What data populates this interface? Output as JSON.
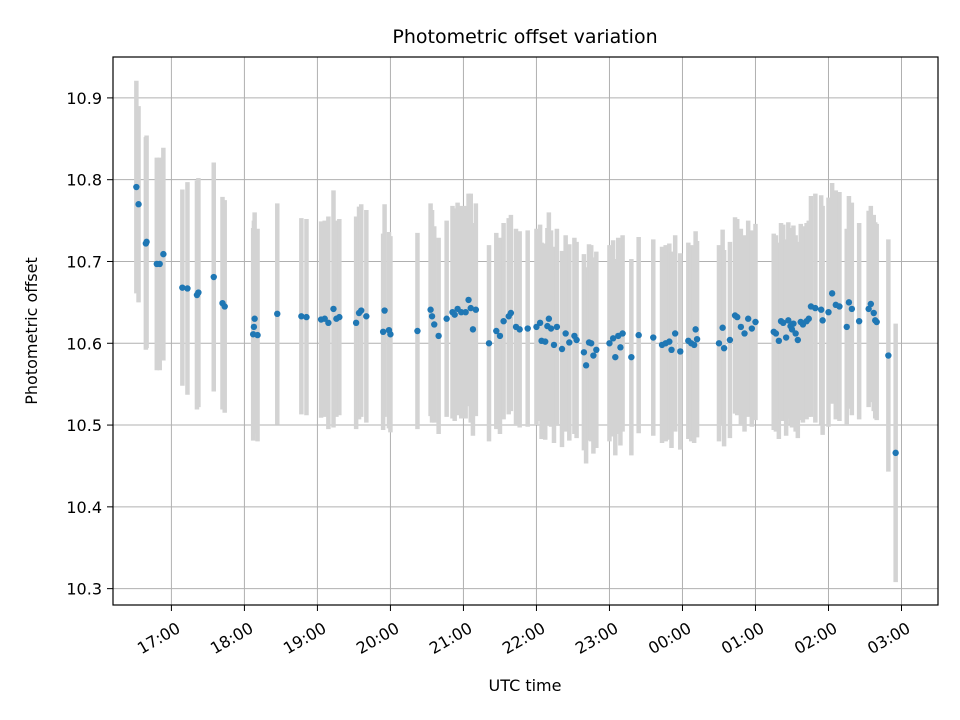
{
  "chart_data": {
    "type": "scatter",
    "title": "Photometric offset variation",
    "xlabel": "UTC time",
    "ylabel": "Photometric offset",
    "x_unit": "hours since 16:00 UTC",
    "xlim": [
      0.2,
      11.5
    ],
    "ylim": [
      10.28,
      10.95
    ],
    "grid": true,
    "x_ticks": [
      {
        "value": 1,
        "label": "17:00"
      },
      {
        "value": 2,
        "label": "18:00"
      },
      {
        "value": 3,
        "label": "19:00"
      },
      {
        "value": 4,
        "label": "20:00"
      },
      {
        "value": 5,
        "label": "21:00"
      },
      {
        "value": 6,
        "label": "22:00"
      },
      {
        "value": 7,
        "label": "23:00"
      },
      {
        "value": 8,
        "label": "00:00"
      },
      {
        "value": 9,
        "label": "01:00"
      },
      {
        "value": 10,
        "label": "02:00"
      },
      {
        "value": 11,
        "label": "03:00"
      }
    ],
    "y_ticks": [
      {
        "value": 10.3,
        "label": "10.3"
      },
      {
        "value": 10.4,
        "label": "10.4"
      },
      {
        "value": 10.5,
        "label": "10.5"
      },
      {
        "value": 10.6,
        "label": "10.6"
      },
      {
        "value": 10.7,
        "label": "10.7"
      },
      {
        "value": 10.8,
        "label": "10.8"
      },
      {
        "value": 10.9,
        "label": "10.9"
      }
    ],
    "colors": {
      "point": "#1f77b4",
      "errorbar": "#d3d3d3",
      "grid": "#b0b0b0"
    },
    "series": [
      {
        "name": "offset",
        "points": [
          [
            0.52,
            10.791,
            0.13
          ],
          [
            0.55,
            10.77,
            0.12
          ],
          [
            0.65,
            10.722,
            0.13
          ],
          [
            0.66,
            10.724,
            0.13
          ],
          [
            0.8,
            10.697,
            0.13
          ],
          [
            0.84,
            10.697,
            0.13
          ],
          [
            0.89,
            10.709,
            0.13
          ],
          [
            1.15,
            10.668,
            0.12
          ],
          [
            1.22,
            10.667,
            0.13
          ],
          [
            1.35,
            10.659,
            0.14
          ],
          [
            1.37,
            10.662,
            0.14
          ],
          [
            1.58,
            10.681,
            0.14
          ],
          [
            1.7,
            10.649,
            0.13
          ],
          [
            1.73,
            10.645,
            0.13
          ],
          [
            2.12,
            10.611,
            0.13
          ],
          [
            2.13,
            10.62,
            0.13
          ],
          [
            2.14,
            10.63,
            0.13
          ],
          [
            2.18,
            10.61,
            0.13
          ],
          [
            2.45,
            10.636,
            0.135
          ],
          [
            2.78,
            10.633,
            0.12
          ],
          [
            2.85,
            10.632,
            0.12
          ],
          [
            3.05,
            10.629,
            0.12
          ],
          [
            3.1,
            10.63,
            0.12
          ],
          [
            3.15,
            10.625,
            0.13
          ],
          [
            3.22,
            10.642,
            0.145
          ],
          [
            3.26,
            10.63,
            0.12
          ],
          [
            3.3,
            10.632,
            0.12
          ],
          [
            3.53,
            10.625,
            0.13
          ],
          [
            3.57,
            10.637,
            0.13
          ],
          [
            3.6,
            10.64,
            0.13
          ],
          [
            3.67,
            10.633,
            0.13
          ],
          [
            3.9,
            10.614,
            0.12
          ],
          [
            3.92,
            10.64,
            0.13
          ],
          [
            3.98,
            10.616,
            0.12
          ],
          [
            4.0,
            10.611,
            0.12
          ],
          [
            4.37,
            10.615,
            0.12
          ],
          [
            4.55,
            10.641,
            0.13
          ],
          [
            4.57,
            10.633,
            0.13
          ],
          [
            4.6,
            10.623,
            0.12
          ],
          [
            4.66,
            10.609,
            0.12
          ],
          [
            4.77,
            10.63,
            0.12
          ],
          [
            4.85,
            10.638,
            0.13
          ],
          [
            4.88,
            10.635,
            0.13
          ],
          [
            4.92,
            10.642,
            0.13
          ],
          [
            4.97,
            10.638,
            0.13
          ],
          [
            5.03,
            10.638,
            0.13
          ],
          [
            5.07,
            10.653,
            0.13
          ],
          [
            5.1,
            10.643,
            0.14
          ],
          [
            5.13,
            10.617,
            0.13
          ],
          [
            5.17,
            10.641,
            0.13
          ],
          [
            5.35,
            10.6,
            0.12
          ],
          [
            5.45,
            10.615,
            0.12
          ],
          [
            5.5,
            10.609,
            0.12
          ],
          [
            5.55,
            10.627,
            0.12
          ],
          [
            5.62,
            10.633,
            0.12
          ],
          [
            5.65,
            10.637,
            0.12
          ],
          [
            5.72,
            10.62,
            0.12
          ],
          [
            5.77,
            10.617,
            0.12
          ],
          [
            5.88,
            10.618,
            0.12
          ],
          [
            6.0,
            10.62,
            0.12
          ],
          [
            6.05,
            10.625,
            0.12
          ],
          [
            6.07,
            10.603,
            0.12
          ],
          [
            6.12,
            10.602,
            0.12
          ],
          [
            6.15,
            10.621,
            0.12
          ],
          [
            6.17,
            10.63,
            0.13
          ],
          [
            6.2,
            10.618,
            0.12
          ],
          [
            6.24,
            10.598,
            0.12
          ],
          [
            6.28,
            10.62,
            0.12
          ],
          [
            6.35,
            10.593,
            0.12
          ],
          [
            6.4,
            10.612,
            0.12
          ],
          [
            6.45,
            10.601,
            0.12
          ],
          [
            6.52,
            10.609,
            0.12
          ],
          [
            6.55,
            10.604,
            0.12
          ],
          [
            6.65,
            10.589,
            0.12
          ],
          [
            6.68,
            10.573,
            0.12
          ],
          [
            6.72,
            10.601,
            0.12
          ],
          [
            6.75,
            10.6,
            0.12
          ],
          [
            6.78,
            10.585,
            0.12
          ],
          [
            6.82,
            10.592,
            0.12
          ],
          [
            7.0,
            10.6,
            0.12
          ],
          [
            7.05,
            10.606,
            0.12
          ],
          [
            7.08,
            10.583,
            0.12
          ],
          [
            7.12,
            10.609,
            0.12
          ],
          [
            7.15,
            10.595,
            0.12
          ],
          [
            7.18,
            10.612,
            0.12
          ],
          [
            7.3,
            10.583,
            0.12
          ],
          [
            7.4,
            10.61,
            0.12
          ],
          [
            7.6,
            10.607,
            0.12
          ],
          [
            7.72,
            10.598,
            0.12
          ],
          [
            7.77,
            10.6,
            0.12
          ],
          [
            7.82,
            10.602,
            0.12
          ],
          [
            7.85,
            10.592,
            0.12
          ],
          [
            7.9,
            10.612,
            0.12
          ],
          [
            7.97,
            10.59,
            0.12
          ],
          [
            8.08,
            10.603,
            0.12
          ],
          [
            8.12,
            10.6,
            0.12
          ],
          [
            8.16,
            10.598,
            0.12
          ],
          [
            8.18,
            10.617,
            0.12
          ],
          [
            8.2,
            10.605,
            0.12
          ],
          [
            8.5,
            10.6,
            0.12
          ],
          [
            8.55,
            10.619,
            0.12
          ],
          [
            8.57,
            10.594,
            0.12
          ],
          [
            8.65,
            10.604,
            0.12
          ],
          [
            8.72,
            10.634,
            0.12
          ],
          [
            8.75,
            10.632,
            0.12
          ],
          [
            8.8,
            10.62,
            0.12
          ],
          [
            8.85,
            10.612,
            0.12
          ],
          [
            8.9,
            10.63,
            0.12
          ],
          [
            8.95,
            10.618,
            0.12
          ],
          [
            9.0,
            10.626,
            0.12
          ],
          [
            9.25,
            10.614,
            0.12
          ],
          [
            9.28,
            10.612,
            0.12
          ],
          [
            9.32,
            10.603,
            0.12
          ],
          [
            9.35,
            10.627,
            0.12
          ],
          [
            9.38,
            10.625,
            0.12
          ],
          [
            9.42,
            10.607,
            0.12
          ],
          [
            9.45,
            10.628,
            0.12
          ],
          [
            9.48,
            10.621,
            0.12
          ],
          [
            9.5,
            10.617,
            0.12
          ],
          [
            9.52,
            10.624,
            0.12
          ],
          [
            9.55,
            10.612,
            0.12
          ],
          [
            9.58,
            10.604,
            0.12
          ],
          [
            9.62,
            10.626,
            0.12
          ],
          [
            9.65,
            10.623,
            0.12
          ],
          [
            9.7,
            10.627,
            0.12
          ],
          [
            9.73,
            10.63,
            0.12
          ],
          [
            9.76,
            10.645,
            0.135
          ],
          [
            9.82,
            10.643,
            0.14
          ],
          [
            9.9,
            10.641,
            0.14
          ],
          [
            9.92,
            10.628,
            0.14
          ],
          [
            10.0,
            10.638,
            0.14
          ],
          [
            10.05,
            10.661,
            0.135
          ],
          [
            10.1,
            10.647,
            0.14
          ],
          [
            10.15,
            10.645,
            0.14
          ],
          [
            10.25,
            10.62,
            0.12
          ],
          [
            10.28,
            10.65,
            0.13
          ],
          [
            10.32,
            10.642,
            0.13
          ],
          [
            10.42,
            10.627,
            0.12
          ],
          [
            10.55,
            10.642,
            0.12
          ],
          [
            10.58,
            10.648,
            0.12
          ],
          [
            10.62,
            10.637,
            0.12
          ],
          [
            10.64,
            10.628,
            0.12
          ],
          [
            10.66,
            10.626,
            0.12
          ],
          [
            10.82,
            10.585,
            0.142
          ],
          [
            10.92,
            10.466,
            0.158
          ]
        ]
      }
    ]
  }
}
